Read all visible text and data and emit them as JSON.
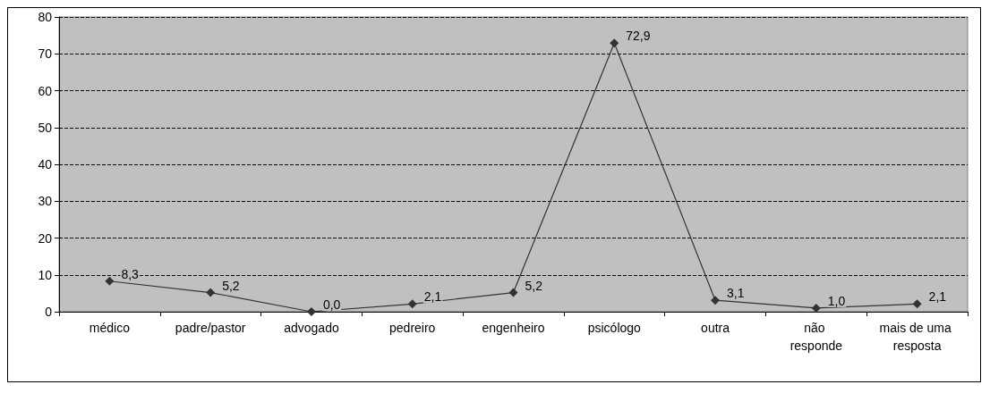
{
  "chart_data": {
    "type": "line",
    "categories": [
      "médico",
      "padre/pastor",
      "advogado",
      "pedreiro",
      "engenheiro",
      "psicólogo",
      "outra",
      "não responde",
      "mais de uma resposta"
    ],
    "values": [
      8.3,
      5.2,
      0.0,
      2.1,
      5.2,
      72.9,
      3.1,
      1.0,
      2.1
    ],
    "value_labels": [
      "8,3",
      "5,2",
      "0,0",
      "2,1",
      "5,2",
      "72,9",
      "3,1",
      "1,0",
      "2,1"
    ],
    "color": "#333333",
    "ylim": [
      0,
      80
    ],
    "yticks": [
      0,
      10,
      20,
      30,
      40,
      50,
      60,
      70,
      80
    ],
    "grid": "y",
    "marker": "diamond",
    "line_style": "solid"
  }
}
